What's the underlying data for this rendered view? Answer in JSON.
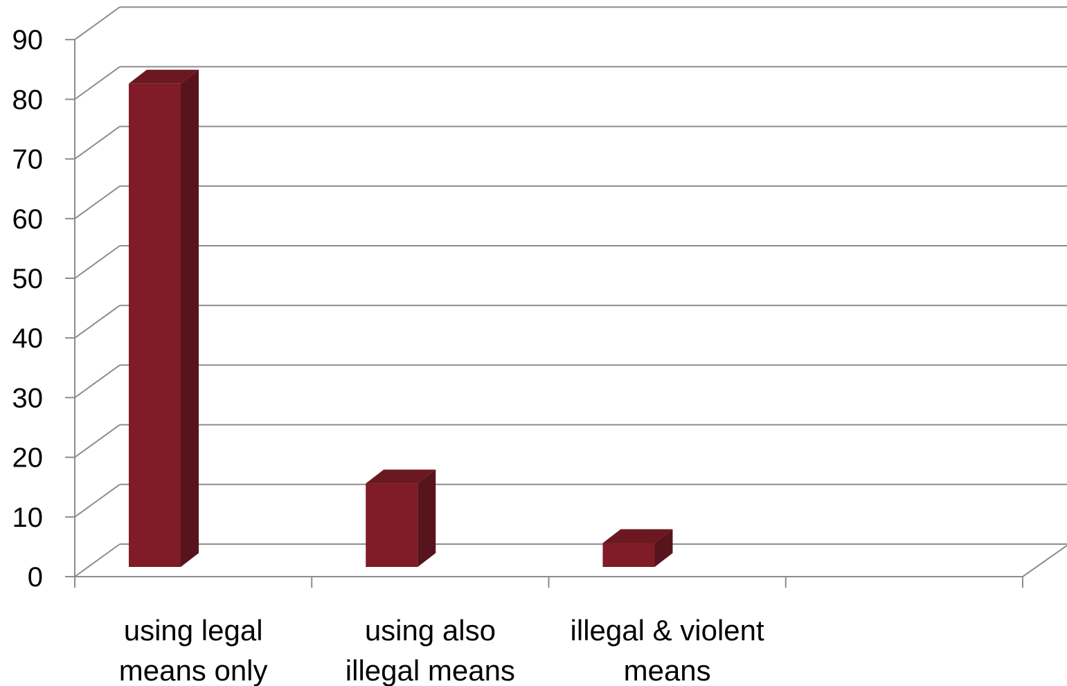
{
  "chart_data": {
    "type": "bar",
    "title": "",
    "xlabel": "",
    "ylabel": "",
    "categories": [
      [
        "using legal",
        "means only"
      ],
      [
        "using also",
        "illegal means"
      ],
      [
        "illegal & violent",
        "means"
      ],
      []
    ],
    "values": [
      81,
      14,
      4,
      null
    ],
    "ylim": [
      0,
      90
    ],
    "ytick_step": 10,
    "yticks": [
      "0",
      "10",
      "20",
      "30",
      "40",
      "50",
      "60",
      "70",
      "80",
      "90"
    ],
    "grid": true,
    "legend": "none",
    "style": "3d-column",
    "colors": {
      "bar_front": "#7f1c28",
      "bar_side": "#57141c",
      "bar_top": "#6b1820",
      "gridline": "#8c8c8c",
      "text": "#000000"
    }
  }
}
